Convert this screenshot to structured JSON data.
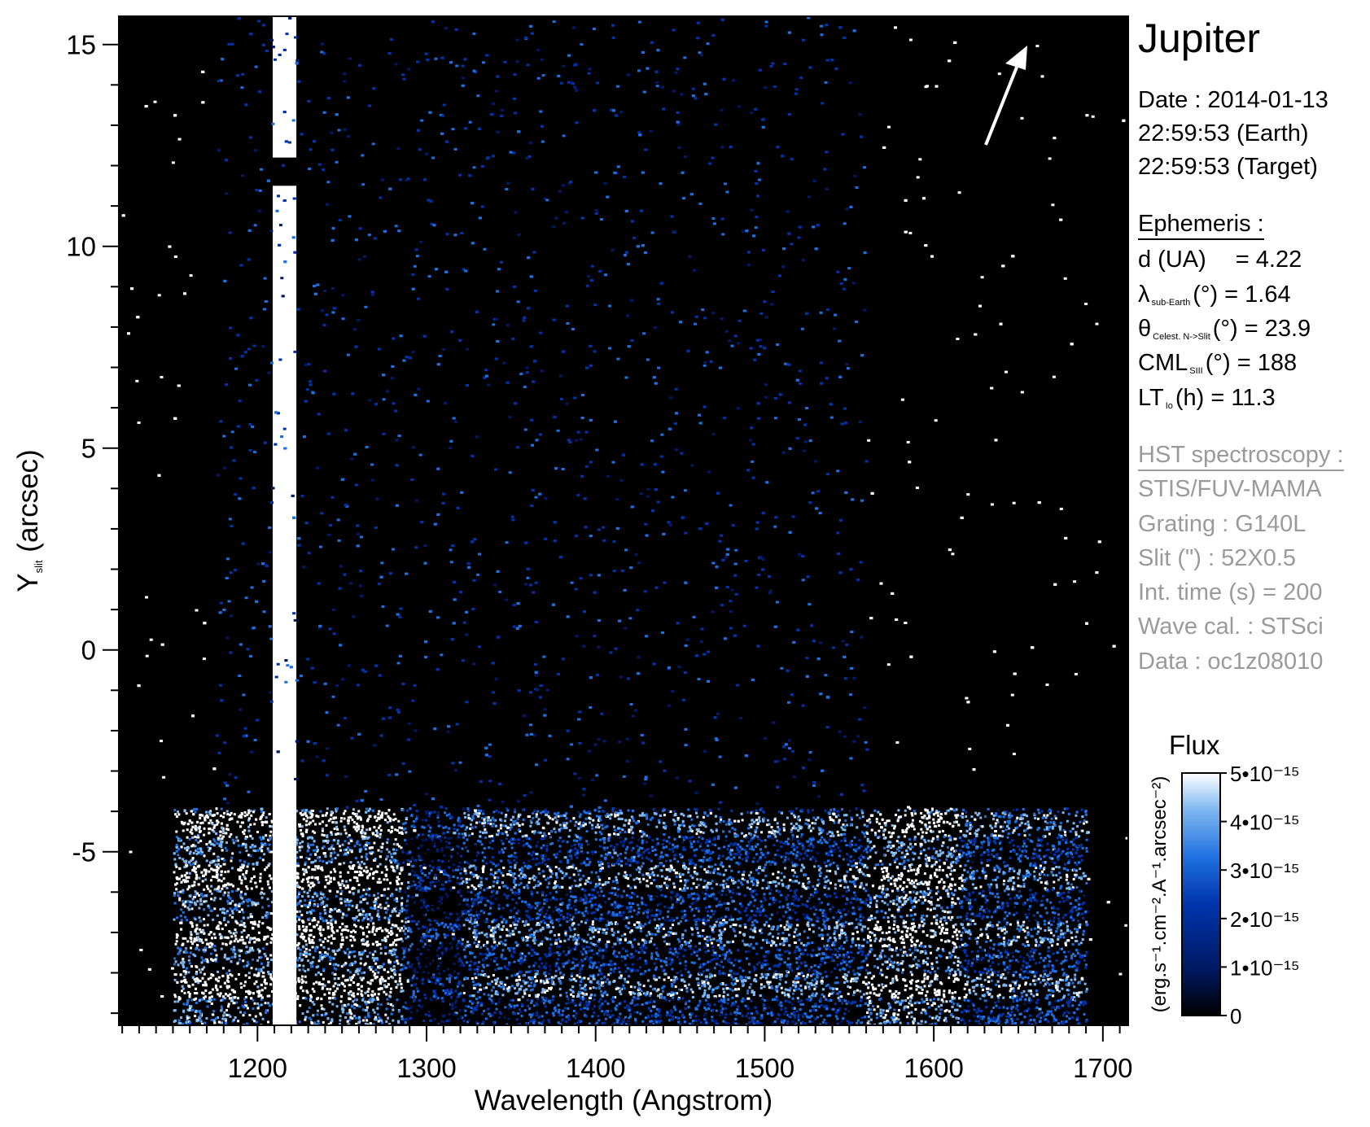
{
  "chart_data": {
    "type": "heatmap",
    "title": "",
    "xlabel": "Wavelength (Angstrom)",
    "ylabel": {
      "main": "Y",
      "sub": "slit",
      "unit": "(arcsec)"
    },
    "xlim": [
      1118,
      1715
    ],
    "ylim": [
      -9.3,
      15.7
    ],
    "x_ticks": [
      "1200",
      "1300",
      "1400",
      "1500",
      "1600",
      "1700"
    ],
    "x_tick_values": [
      1200,
      1300,
      1400,
      1500,
      1600,
      1700
    ],
    "y_ticks": [
      "15",
      "10",
      "5",
      "0",
      "-5"
    ],
    "y_tick_values": [
      15,
      10,
      5,
      0,
      -5
    ],
    "features": {
      "lyman_alpha_line": {
        "x_center": 1216,
        "x_width": 14,
        "y_range": [
          -9.3,
          15.7
        ],
        "gap_y": [
          11.5,
          12.2
        ]
      },
      "auroral_band": {
        "x_range": [
          1150,
          1690
        ],
        "y_range": [
          -9.3,
          -3.9
        ]
      },
      "band_structure_y": [
        -4.3,
        -5.6,
        -7.0,
        -8.3
      ]
    },
    "colorbar": {
      "title": "Flux",
      "unit_label": "(erg.s⁻¹.cm⁻².A⁻¹.arcsec⁻²)",
      "range": [
        0,
        5e-15
      ],
      "ticks": [
        {
          "value": 0,
          "label": "0"
        },
        {
          "value": 1e-15,
          "label": "1•10⁻¹⁵"
        },
        {
          "value": 2e-15,
          "label": "2•10⁻¹⁵"
        },
        {
          "value": 3e-15,
          "label": "3•10⁻¹⁵"
        },
        {
          "value": 4e-15,
          "label": "4•10⁻¹⁵"
        },
        {
          "value": 5e-15,
          "label": "5•10⁻¹⁵"
        }
      ],
      "colors": [
        "#000000",
        "#001a66",
        "#0033aa",
        "#1e6fe0",
        "#7fb8f0",
        "#ffffff"
      ]
    },
    "arrow": {
      "direction": "north",
      "angle_deg_from_vertical": 23.9
    }
  },
  "panel": {
    "target": "Jupiter",
    "date": "Date : 2014-01-13",
    "time_earth": "22:59:53 (Earth)",
    "time_target": "22:59:53 (Target)",
    "ephemeris_header": "Ephemeris :",
    "d_label": "d (UA)",
    "d_value": "= 4.22",
    "lambda_main": "λ",
    "lambda_sub": "sub-Earth",
    "lambda_value": "(°)  = 1.64",
    "theta_main": "θ",
    "theta_sub": "Celest. N->Slit",
    "theta_value": "(°) = 23.9",
    "cml_main": "CML",
    "cml_sub": "SIII",
    "cml_value": "(°) = 188",
    "lt_main": "LT",
    "lt_sub": "Io",
    "lt_value": "(h) = 11.3",
    "hst_header": "HST spectroscopy :",
    "instrument": "STIS/FUV-MAMA",
    "grating": "Grating : G140L",
    "slit": "Slit (\") : 52X0.5",
    "int_time": "Int. time (s) = 200",
    "wave_cal": "Wave cal. : STSci",
    "data_id": "Data : oc1z08010"
  }
}
